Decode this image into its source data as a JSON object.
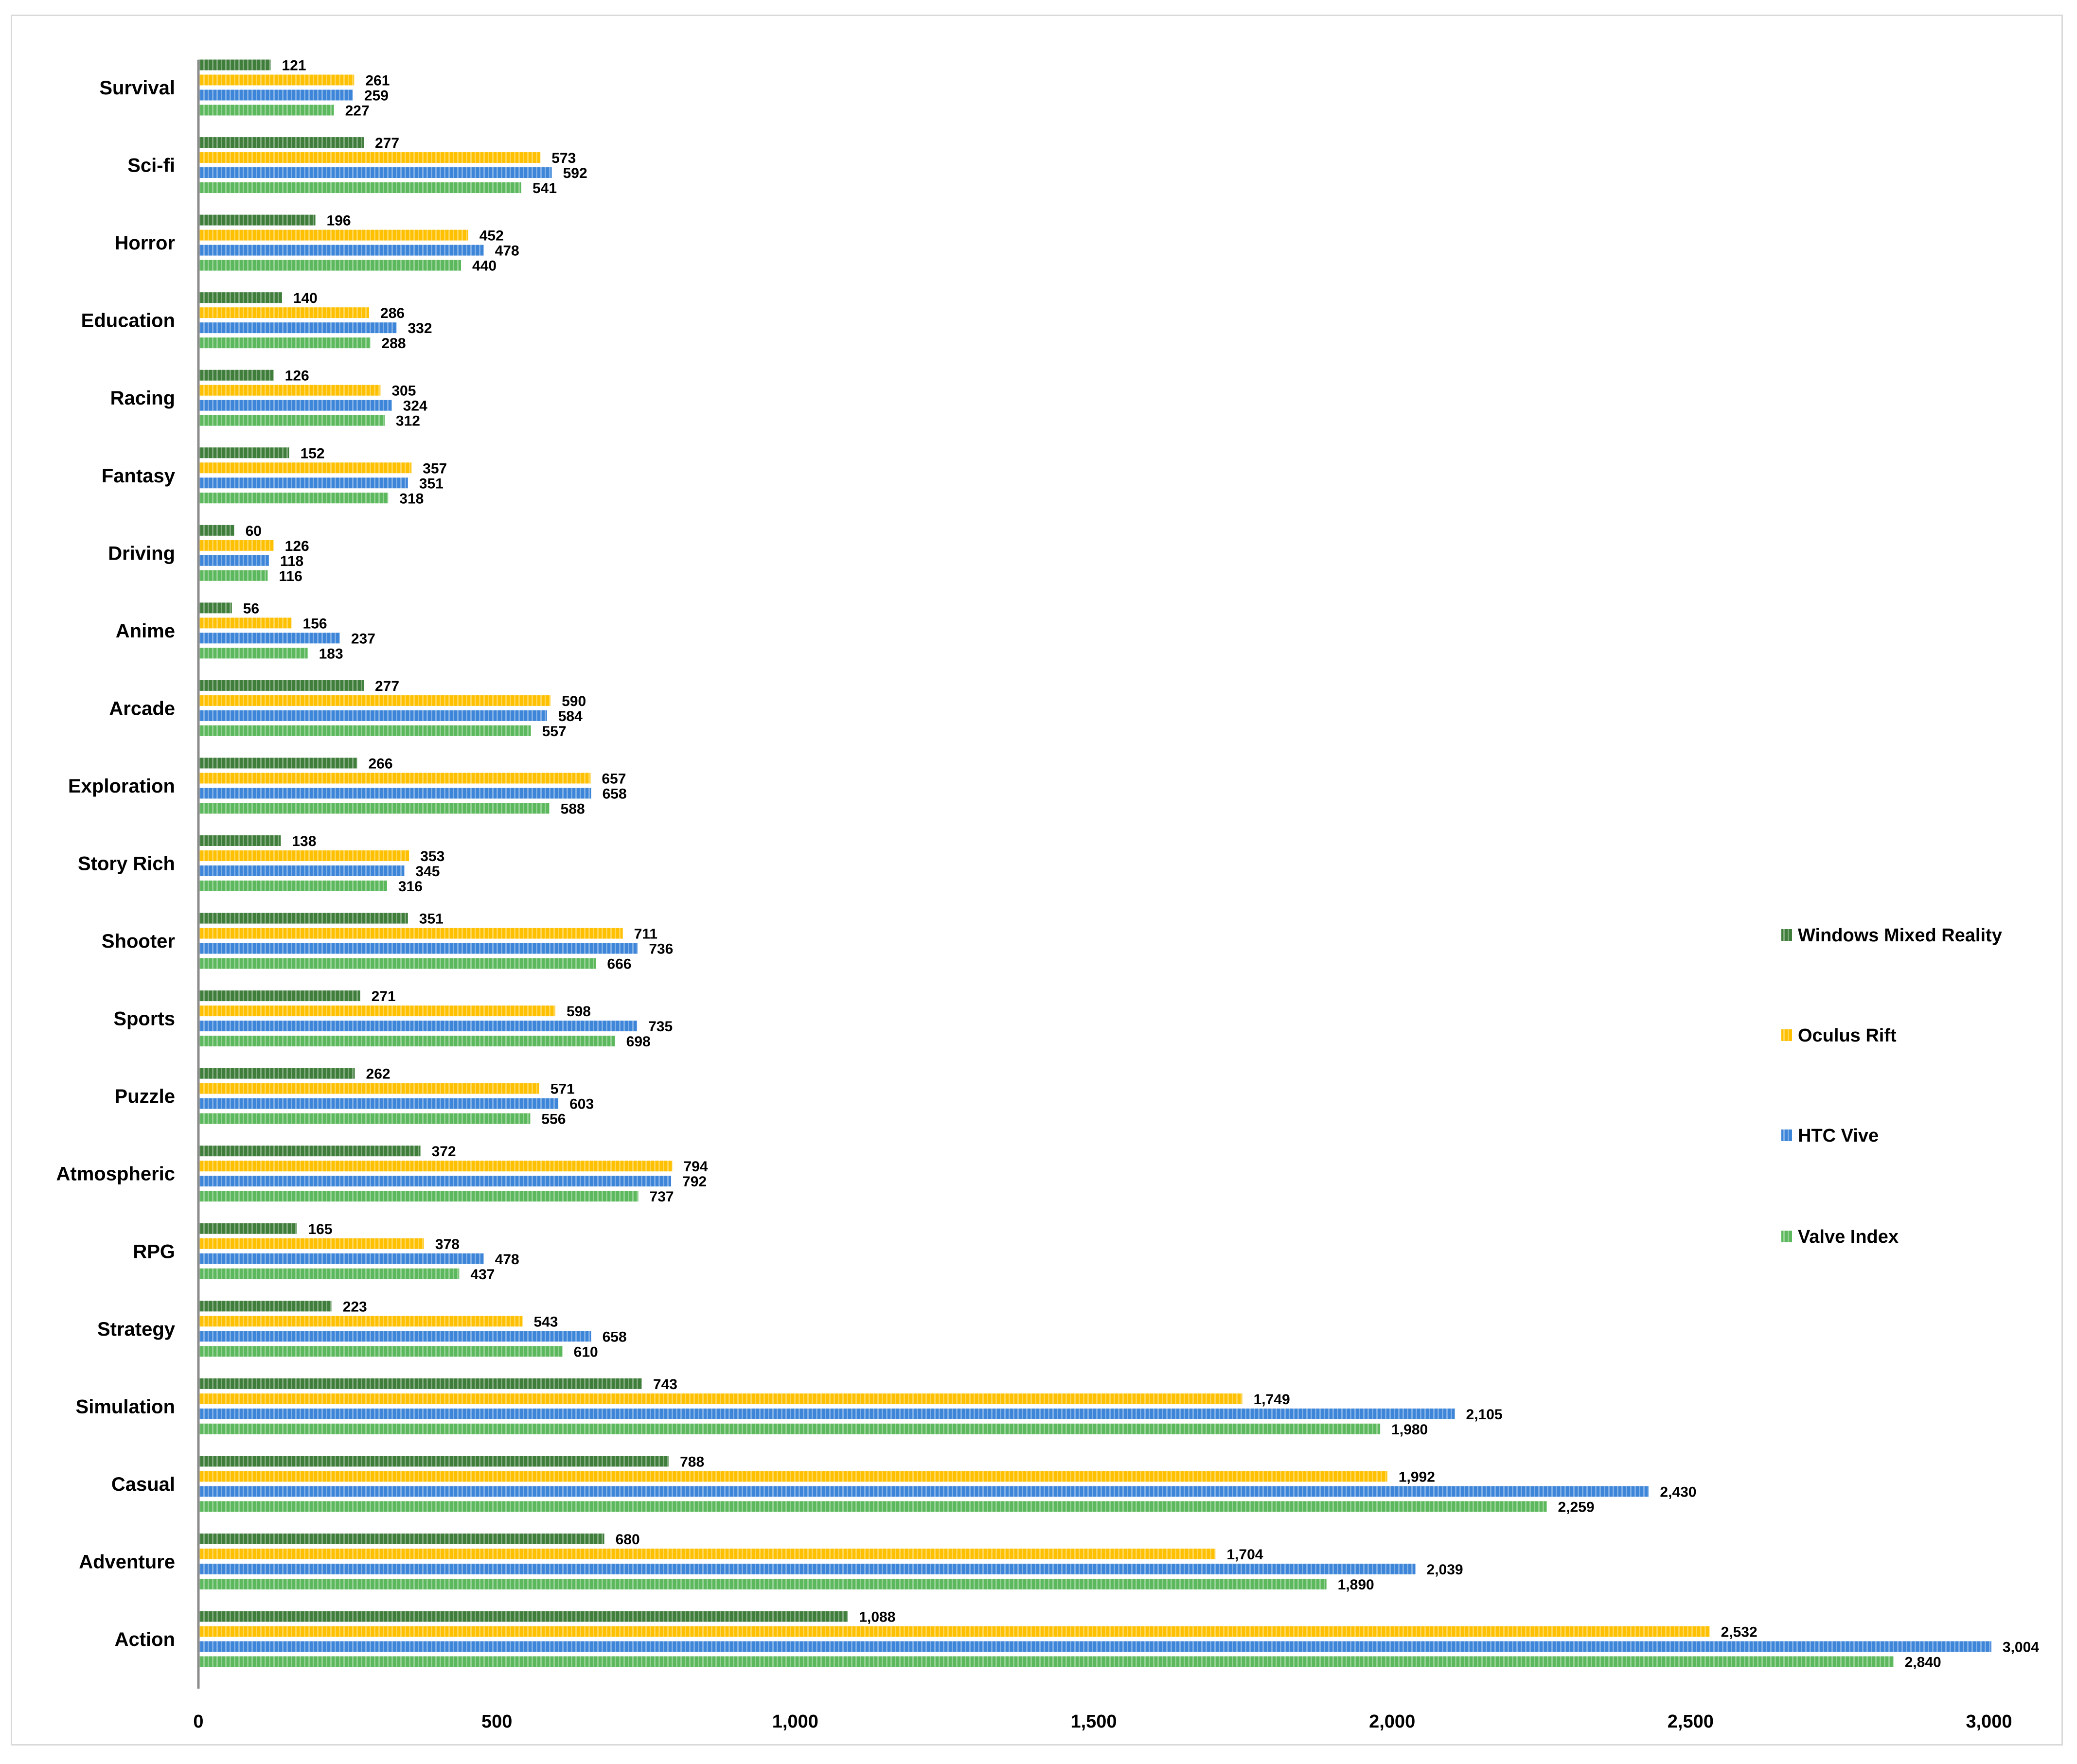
{
  "chart_data": {
    "type": "bar",
    "orientation": "horizontal",
    "title": "",
    "xlabel": "",
    "ylabel": "",
    "xlim": [
      0,
      3000
    ],
    "x_ticks": [
      0,
      500,
      1000,
      1500,
      2000,
      2500,
      3000
    ],
    "x_tick_labels": [
      "0",
      "500",
      "1,000",
      "1,500",
      "2,000",
      "2,500",
      "3,000"
    ],
    "grid": false,
    "legend_position": "right",
    "categories": [
      "Survival",
      "Sci-fi",
      "Horror",
      "Education",
      "Racing",
      "Fantasy",
      "Driving",
      "Anime",
      "Arcade",
      "Exploration",
      "Story Rich",
      "Shooter",
      "Sports",
      "Puzzle",
      "Atmospheric",
      "RPG",
      "Strategy",
      "Simulation",
      "Casual",
      "Adventure",
      "Action"
    ],
    "series": [
      {
        "name": "Windows Mixed Reality",
        "color": "#3f7d3a",
        "values": [
          121,
          277,
          196,
          140,
          126,
          152,
          60,
          56,
          277,
          266,
          138,
          351,
          271,
          262,
          372,
          165,
          223,
          743,
          788,
          680,
          1088
        ],
        "labels": [
          "121",
          "277",
          "196",
          "140",
          "126",
          "152",
          "60",
          "56",
          "277",
          "266",
          "138",
          "351",
          "271",
          "262",
          "372",
          "165",
          "223",
          "743",
          "788",
          "680",
          "1,088"
        ]
      },
      {
        "name": "Oculus Rift",
        "color": "#ffc000",
        "values": [
          261,
          573,
          452,
          286,
          305,
          357,
          126,
          156,
          590,
          657,
          353,
          711,
          598,
          571,
          794,
          378,
          543,
          1749,
          1992,
          1704,
          2532
        ],
        "labels": [
          "261",
          "573",
          "452",
          "286",
          "305",
          "357",
          "126",
          "156",
          "590",
          "657",
          "353",
          "711",
          "598",
          "571",
          "794",
          "378",
          "543",
          "1,749",
          "1,992",
          "1,704",
          "2,532"
        ]
      },
      {
        "name": "HTC Vive",
        "color": "#3d85d8",
        "values": [
          259,
          592,
          478,
          332,
          324,
          351,
          118,
          237,
          584,
          658,
          345,
          736,
          735,
          603,
          792,
          478,
          658,
          2105,
          2430,
          2039,
          3004
        ],
        "labels": [
          "259",
          "592",
          "478",
          "332",
          "324",
          "351",
          "118",
          "237",
          "584",
          "658",
          "345",
          "736",
          "735",
          "603",
          "792",
          "478",
          "658",
          "2,105",
          "2,430",
          "2,039",
          "3,004"
        ]
      },
      {
        "name": "Valve Index",
        "color": "#5cb85c",
        "values": [
          227,
          541,
          440,
          288,
          312,
          318,
          116,
          183,
          557,
          588,
          316,
          666,
          698,
          556,
          737,
          437,
          610,
          1980,
          2259,
          1890,
          2840
        ],
        "labels": [
          "227",
          "541",
          "440",
          "288",
          "312",
          "318",
          "116",
          "183",
          "557",
          "588",
          "316",
          "666",
          "698",
          "556",
          "737",
          "437",
          "610",
          "1,980",
          "2,259",
          "1,890",
          "2,840"
        ]
      }
    ],
    "legend_order": [
      "Windows Mixed Reality",
      "Oculus Rift",
      "HTC Vive",
      "Valve Index"
    ]
  }
}
